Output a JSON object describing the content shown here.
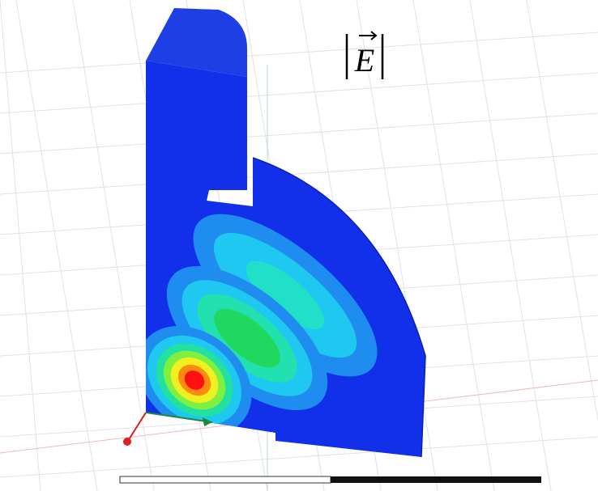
{
  "label": "E"
}
